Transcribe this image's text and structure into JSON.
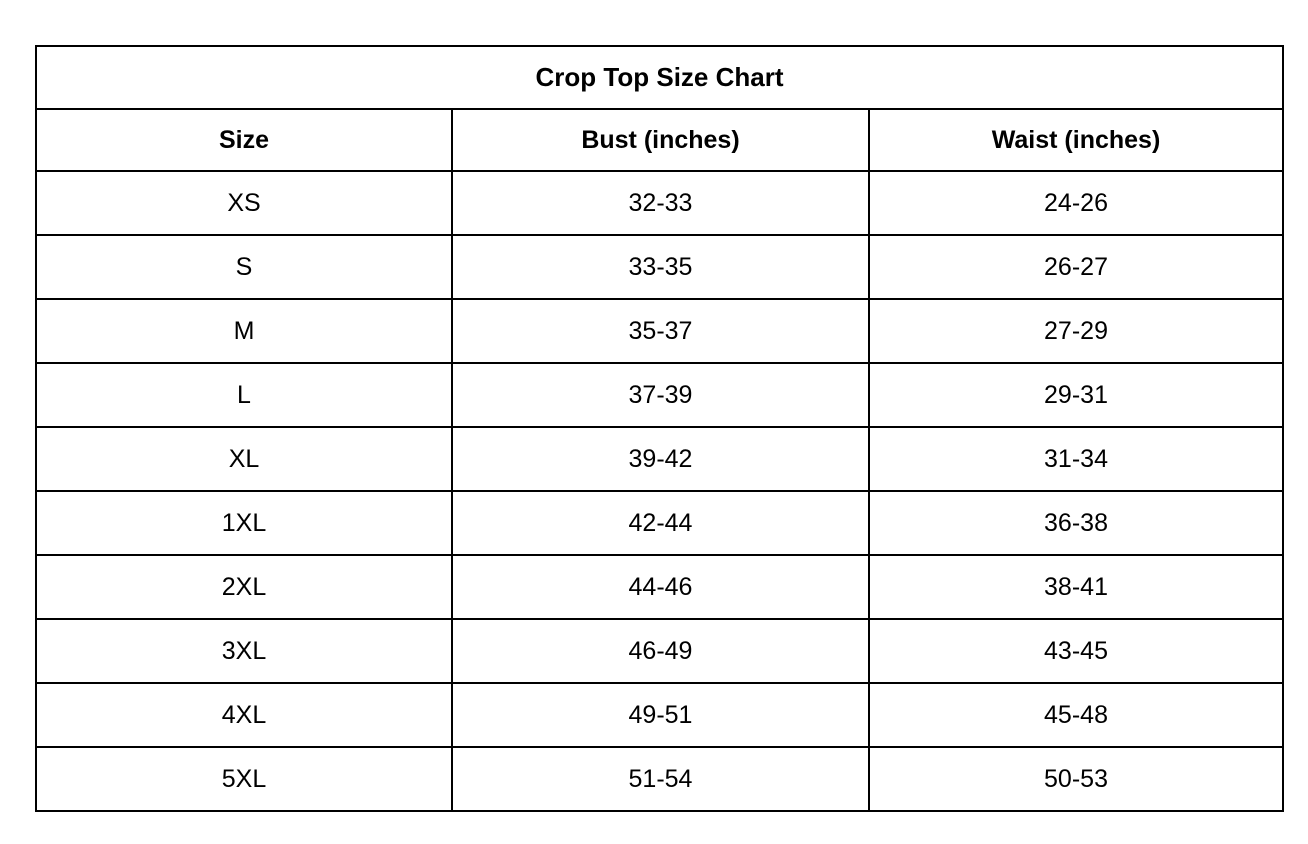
{
  "table": {
    "title": "Crop Top Size Chart",
    "columns": [
      "Size",
      "Bust (inches)",
      "Waist (inches)"
    ],
    "rows": [
      {
        "size": "XS",
        "bust": "32-33",
        "waist": "24-26"
      },
      {
        "size": "S",
        "bust": "33-35",
        "waist": "26-27"
      },
      {
        "size": "M",
        "bust": "35-37",
        "waist": "27-29"
      },
      {
        "size": "L",
        "bust": "37-39",
        "waist": "29-31"
      },
      {
        "size": "XL",
        "bust": "39-42",
        "waist": "31-34"
      },
      {
        "size": "1XL",
        "bust": "42-44",
        "waist": "36-38"
      },
      {
        "size": "2XL",
        "bust": "44-46",
        "waist": "38-41"
      },
      {
        "size": "3XL",
        "bust": "46-49",
        "waist": "43-45"
      },
      {
        "size": "4XL",
        "bust": "49-51",
        "waist": "45-48"
      },
      {
        "size": "5XL",
        "bust": "51-54",
        "waist": "50-53"
      }
    ],
    "colors": {
      "border": "#000000",
      "text": "#000000",
      "background": "#ffffff"
    }
  }
}
